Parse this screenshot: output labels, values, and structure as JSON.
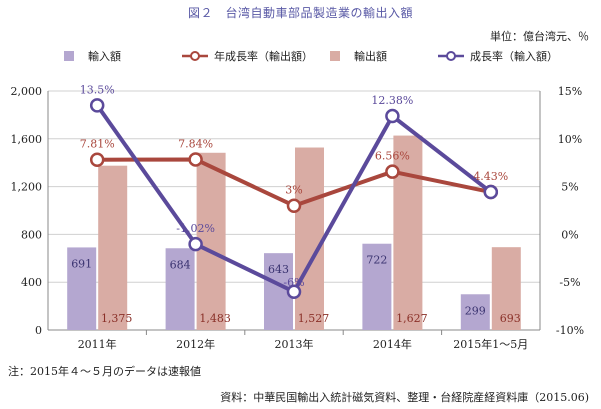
{
  "title": "図２　台湾自動車部品製造業の輸出入額",
  "unit": "単位：億台湾元、％",
  "note": "注：2015年４〜５月のデータは速報値",
  "source": "資料：中華民国輸出入統計磁気資料、整理・台経院産経資料庫（2015.06)",
  "colors": {
    "import_bar": "#b4a7d0",
    "export_bar": "#d9aca4",
    "export_growth_line": "#a9473d",
    "import_growth_line": "#5b4a9b",
    "title": "#5a5aa6"
  },
  "chart_data": {
    "type": "bar+line",
    "categories": [
      "2011年",
      "2012年",
      "2013年",
      "2014年",
      "2015年1〜5月"
    ],
    "legend": [
      "輸入額",
      "年成長率（輸出額）",
      "輸出額",
      "成長率（輸入額）"
    ],
    "bars": [
      {
        "name": "輸入額",
        "values": [
          691,
          684,
          643,
          722,
          299
        ],
        "labels": [
          "691",
          "684",
          "643",
          "722",
          "299"
        ]
      },
      {
        "name": "輸出額",
        "values": [
          1375,
          1483,
          1527,
          1627,
          693
        ],
        "labels": [
          "1,375",
          "1,483",
          "1,527",
          "1,627",
          "693"
        ]
      }
    ],
    "lines": [
      {
        "name": "年成長率（輸出額）",
        "values": [
          7.81,
          7.84,
          3,
          6.56,
          4.43
        ],
        "labels": [
          "7.81%",
          "7.84%",
          "3%",
          "6.56%",
          "4.43%"
        ]
      },
      {
        "name": "成長率（輸入額）",
        "values": [
          13.5,
          -1.02,
          -6,
          12.38,
          4.43
        ],
        "labels": [
          "13.5%",
          "-1.02%",
          "-6%",
          "12.38%",
          ""
        ]
      }
    ],
    "y_left": {
      "min": 0,
      "max": 2000,
      "ticks": [
        "0",
        "400",
        "800",
        "1,200",
        "1,600",
        "2,000"
      ],
      "tick_values": [
        0,
        400,
        800,
        1200,
        1600,
        2000
      ]
    },
    "y_right": {
      "min": -10,
      "max": 15,
      "ticks": [
        "-10%",
        "-5%",
        "0%",
        "5%",
        "10%",
        "15%"
      ],
      "tick_values": [
        -10,
        -5,
        0,
        5,
        10,
        15
      ]
    },
    "grid": true,
    "legend_position": "top"
  }
}
